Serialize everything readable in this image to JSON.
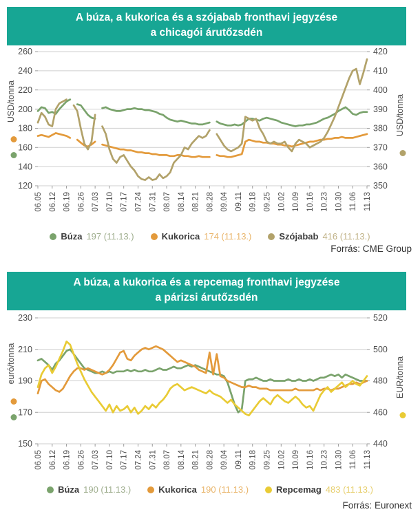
{
  "theme": {
    "header_bg": "#17A694",
    "header_text": "#FFFFFF",
    "grid_color": "#CFCFCF",
    "tick_color": "#9B9B9B",
    "tick_text_color": "#4D4D4D"
  },
  "chart_data": [
    {
      "type": "line",
      "title_line1": "A búza, a kukorica és a szójabab fronthavi jegyzése",
      "title_line2": "a chicagói árutőzsdén",
      "source": "Forrás: CME Group",
      "left_axis": {
        "label": "USD/tonna",
        "min": 120,
        "max": 260,
        "step": 20,
        "dots": [
          "#E39A3B",
          "#7AA36C"
        ]
      },
      "right_axis": {
        "label": "USD/tonna",
        "min": 350,
        "max": 420,
        "step": 10,
        "dots": [
          "#B2A26A"
        ]
      },
      "x_labels": [
        "06.05",
        "06.12",
        "06.19",
        "06.26",
        "07.03",
        "07.10",
        "07.17",
        "07.24",
        "07.31",
        "08.07",
        "08.14",
        "08.21",
        "08.28",
        "09.04",
        "09.11",
        "09.18",
        "09.25",
        "10.02",
        "10.09",
        "10.16",
        "10.23",
        "10.30",
        "11.06",
        "11.13"
      ],
      "legend_note": "values shown for 11.13.",
      "series": [
        {
          "name": "Búza",
          "axis": "left",
          "color": "#7AA36C",
          "value_color": "#9FAE8E",
          "value_label": "197 (11.13.)",
          "last_value": 197,
          "values": [
            198,
            202,
            201,
            196,
            197,
            195,
            200,
            204,
            208,
            210,
            null,
            205,
            204,
            199,
            194,
            191,
            190,
            null,
            201,
            202,
            200,
            199,
            198,
            198,
            199,
            200,
            200,
            201,
            200,
            200,
            199,
            199,
            198,
            197,
            195,
            194,
            191,
            189,
            188,
            187,
            188,
            187,
            186,
            185,
            185,
            184,
            184,
            185,
            186,
            null,
            187,
            185,
            184,
            183,
            183,
            184,
            183,
            184,
            187,
            190,
            190,
            189,
            188,
            190,
            191,
            190,
            189,
            188,
            186,
            185,
            184,
            183,
            182,
            183,
            183,
            184,
            184,
            185,
            186,
            188,
            190,
            191,
            193,
            195,
            198,
            200,
            202,
            199,
            195,
            194,
            196,
            197,
            197
          ]
        },
        {
          "name": "Kukorica",
          "axis": "left",
          "color": "#E39A3B",
          "value_color": "#E9B56B",
          "value_label": "174 (11.13.)",
          "last_value": 174,
          "values": [
            172,
            173,
            172,
            171,
            173,
            175,
            174,
            173,
            172,
            170,
            null,
            168,
            165,
            162,
            161,
            163,
            166,
            null,
            163,
            162,
            161,
            160,
            159,
            158,
            158,
            157,
            157,
            156,
            155,
            155,
            154,
            154,
            153,
            153,
            152,
            152,
            152,
            151,
            151,
            152,
            152,
            151,
            151,
            150,
            150,
            151,
            150,
            150,
            150,
            null,
            152,
            151,
            151,
            150,
            150,
            151,
            152,
            153,
            166,
            168,
            167,
            166,
            166,
            165,
            165,
            164,
            164,
            163,
            163,
            162,
            162,
            161,
            162,
            163,
            164,
            165,
            166,
            166,
            167,
            168,
            168,
            169,
            169,
            170,
            170,
            171,
            170,
            170,
            170,
            171,
            172,
            173,
            174
          ]
        },
        {
          "name": "Szójabab",
          "axis": "right",
          "color": "#B2A26A",
          "value_color": "#C0B287",
          "value_label": "416 (11.13.)",
          "last_value": 416,
          "values": [
            383,
            388,
            386,
            382,
            381,
            390,
            393,
            394,
            395,
            null,
            392,
            389,
            380,
            372,
            369,
            373,
            387,
            null,
            381,
            377,
            369,
            364,
            362,
            365,
            366,
            363,
            360,
            358,
            355,
            353.5,
            353,
            354.5,
            353,
            353.5,
            356,
            354,
            355,
            357,
            362,
            364,
            366,
            370,
            369,
            372,
            374,
            376,
            375,
            376,
            379,
            null,
            377,
            374,
            371,
            369,
            368,
            369,
            370,
            372,
            386,
            385,
            384,
            385,
            380,
            377,
            373,
            372,
            373,
            372,
            372,
            373,
            370,
            368,
            372,
            374,
            373,
            372,
            370,
            371,
            372,
            373,
            375,
            378,
            382,
            386,
            391,
            396,
            401,
            406,
            410,
            411,
            403,
            409,
            416
          ]
        }
      ]
    },
    {
      "type": "line",
      "title_line1": "A búza, a kukorica és a repcemag fronthavi jegyzése",
      "title_line2": "a párizsi árutőzsdén",
      "source": "Forrás: Euronext",
      "left_axis": {
        "label": "euró/tonna",
        "min": 150,
        "max": 230,
        "step": 20,
        "dots": [
          "#E39A3B",
          "#7AA36C"
        ]
      },
      "right_axis": {
        "label": "EUR/tonna",
        "min": 440,
        "max": 520,
        "step": 20,
        "dots": [
          "#E9CB35"
        ]
      },
      "x_labels": [
        "06.05",
        "06.12",
        "06.19",
        "06.26",
        "07.03",
        "07.10",
        "07.17",
        "07.24",
        "07.31",
        "08.07",
        "08.14",
        "08.21",
        "08.28",
        "09.04",
        "09.11",
        "09.18",
        "09.25",
        "10.02",
        "10.09",
        "10.16",
        "10.23",
        "10.30",
        "11.06",
        "11.13"
      ],
      "legend_note": "values shown for 11.13.",
      "series": [
        {
          "name": "Búza",
          "axis": "left",
          "color": "#7AA36C",
          "value_color": "#9FAE8E",
          "value_label": "190 (11.13.)",
          "last_value": 190,
          "values": [
            203,
            204,
            202,
            200,
            197,
            201,
            203,
            206,
            209,
            210,
            207,
            204,
            201,
            198,
            197,
            196,
            195,
            195,
            196,
            195,
            196,
            195,
            196,
            196,
            196,
            197,
            196,
            197,
            196,
            196,
            197,
            196,
            196,
            197,
            198,
            197,
            197,
            198,
            199,
            198,
            198,
            199,
            200,
            199,
            200,
            199,
            198,
            197,
            196,
            195,
            194,
            194,
            193,
            189,
            182,
            175,
            170,
            172,
            190,
            191,
            191,
            192,
            191,
            190,
            190,
            191,
            190,
            190,
            190,
            190,
            191,
            190,
            190,
            191,
            190,
            190,
            191,
            190,
            191,
            192,
            192,
            193,
            194,
            193,
            194,
            192,
            194,
            193,
            192,
            191,
            190,
            190,
            190
          ]
        },
        {
          "name": "Kukorica",
          "axis": "left",
          "color": "#E39A3B",
          "value_color": "#E9B56B",
          "value_label": "190 (11.13.)",
          "last_value": 190,
          "values": [
            182,
            190,
            191,
            188,
            186,
            184,
            183,
            185,
            189,
            193,
            196,
            198,
            198,
            197,
            198,
            197,
            196,
            195,
            194,
            195,
            197,
            200,
            204,
            208,
            209,
            204,
            203,
            206,
            208,
            210,
            211,
            210,
            211,
            212,
            211,
            210,
            208,
            206,
            204,
            202,
            203,
            202,
            201,
            200,
            199,
            197,
            196,
            195,
            208,
            194,
            207,
            193,
            192,
            190,
            189,
            188,
            187,
            186,
            186,
            187,
            186,
            186,
            185,
            185,
            185,
            184,
            184,
            184,
            184,
            184,
            184,
            184,
            185,
            184,
            184,
            184,
            184,
            184,
            185,
            184,
            185,
            185,
            184,
            185,
            185,
            186,
            187,
            188,
            188,
            189,
            188,
            189,
            190
          ]
        },
        {
          "name": "Repcemag",
          "axis": "right",
          "color": "#E9CB35",
          "value_color": "#E7CF6E",
          "value_label": "483 (11.13.)",
          "last_value": 483,
          "values": [
            476,
            484,
            488,
            490,
            485,
            489,
            494,
            499,
            505,
            503,
            497,
            491,
            486,
            481,
            477,
            473,
            470,
            467,
            464,
            461,
            465,
            460,
            464,
            461,
            462,
            464,
            460,
            463,
            459,
            461,
            464,
            462,
            465,
            463,
            466,
            468,
            471,
            475,
            477,
            478,
            476,
            474,
            475,
            476,
            475,
            474,
            473,
            472,
            474,
            472,
            471,
            470,
            468,
            466,
            468,
            465,
            463,
            461,
            459,
            458,
            461,
            464,
            467,
            469,
            467,
            465,
            469,
            471,
            469,
            467,
            466,
            468,
            470,
            468,
            465,
            463,
            464,
            461,
            466,
            471,
            474,
            476,
            473,
            475,
            477,
            479,
            476,
            478,
            480,
            478,
            477,
            480,
            483
          ]
        }
      ]
    }
  ]
}
